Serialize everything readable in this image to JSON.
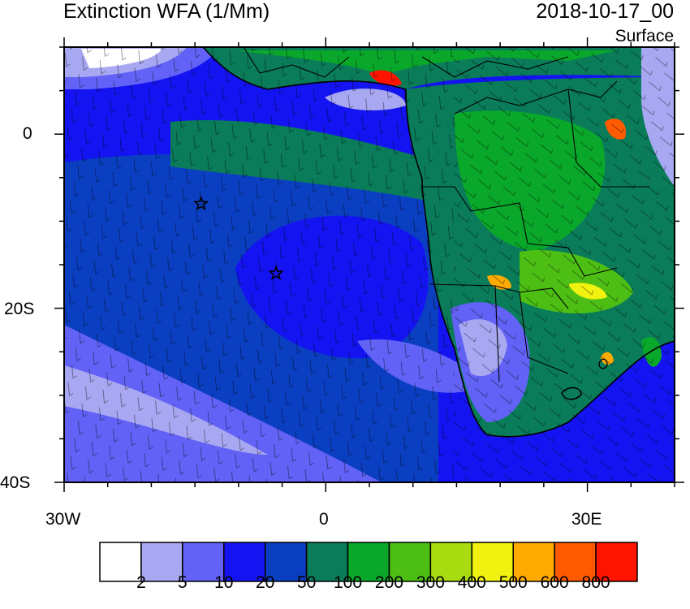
{
  "header": {
    "title": "Extinction WFA (1/Mm)",
    "datetime": "2018-10-17_00",
    "level": "Surface"
  },
  "map": {
    "lon_range": [
      -30,
      40
    ],
    "lat_range": [
      -40,
      10
    ],
    "lat_ticks": [
      "0",
      "20S",
      "40S"
    ],
    "lon_ticks": [
      "30W",
      "0",
      "30E"
    ],
    "markers": [
      {
        "name": "star-marker-1",
        "lon": -14.3,
        "lat": -8.0
      },
      {
        "name": "star-marker-2",
        "lon": -5.7,
        "lat": -16.0
      }
    ]
  },
  "colorbar": {
    "colors": [
      "#ffffff",
      "#a8a8f2",
      "#6262f6",
      "#1414f2",
      "#0b3fc2",
      "#0a7c5a",
      "#0aa82a",
      "#4dbf14",
      "#a8dc10",
      "#f2f210",
      "#ffaa00",
      "#ff5a00",
      "#ff1400"
    ],
    "labels": [
      "2",
      "5",
      "10",
      "20",
      "50",
      "100",
      "200",
      "300",
      "400",
      "500",
      "600",
      "800"
    ]
  }
}
